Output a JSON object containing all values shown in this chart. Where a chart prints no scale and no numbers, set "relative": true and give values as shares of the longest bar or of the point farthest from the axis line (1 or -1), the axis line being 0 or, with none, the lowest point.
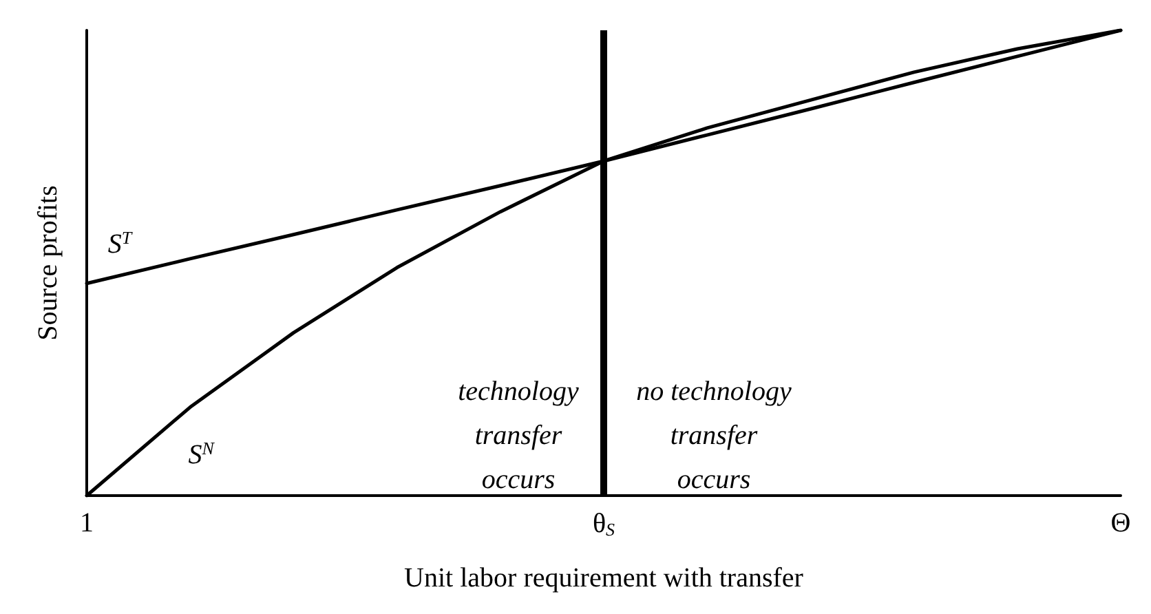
{
  "chart_data": {
    "type": "line",
    "xlabel": "Unit labor requirement with transfer",
    "ylabel": "Source profits",
    "relative": true,
    "categories": [
      "1",
      null,
      null,
      null,
      null,
      "θ$_{S}$",
      null,
      null,
      null,
      null,
      "Θ"
    ],
    "grid": false,
    "legend": false,
    "marker": "none",
    "line_style": "solid",
    "series": [
      {
        "name": "S$^{T}$",
        "color": "#000000",
        "values": [
          0.456,
          0.509,
          0.561,
          0.614,
          0.666,
          0.719,
          0.775,
          0.831,
          0.888,
          0.944,
          1
        ]
      },
      {
        "name": "S$^{N}$",
        "color": "#000000",
        "values": [
          0,
          0.19,
          0.35,
          0.49,
          0.61,
          0.719,
          0.79,
          0.85,
          0.91,
          0.96,
          1
        ]
      }
    ],
    "ref_lines": [
      {
        "axis": "x",
        "value": "θ$_{S}$",
        "color": "#000000"
      }
    ],
    "annotations": [
      "technology\ntransfer\noccurs",
      "no technology\ntransfer\noccurs"
    ]
  }
}
